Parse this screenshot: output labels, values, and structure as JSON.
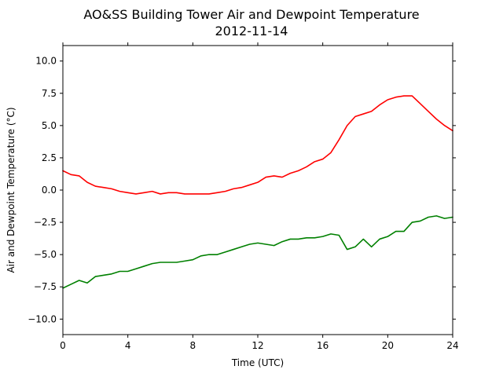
{
  "chart_data": {
    "type": "line",
    "title_line1": "AO&SS Building Tower Air and Dewpoint Temperature",
    "title_line2": "2012-11-14",
    "xlabel": "Time (UTC)",
    "ylabel": "Air and Dewpoint Temperature (°C)",
    "xlim": [
      0,
      24
    ],
    "ylim": [
      -11.2,
      11.2
    ],
    "xticks": [
      0,
      4,
      8,
      12,
      16,
      20,
      24
    ],
    "yticks": [
      -10.0,
      -7.5,
      -5.0,
      -2.5,
      0.0,
      2.5,
      5.0,
      7.5,
      10.0
    ],
    "ytick_labels": [
      "−10.0",
      "−7.5",
      "−5.0",
      "−2.5",
      "0.0",
      "2.5",
      "5.0",
      "7.5",
      "10.0"
    ],
    "grid": false,
    "series": [
      {
        "color": "#ff0000",
        "x": [
          0,
          0.5,
          1,
          1.5,
          2,
          2.5,
          3,
          3.5,
          4,
          4.5,
          5,
          5.5,
          6,
          6.5,
          7,
          7.5,
          8,
          8.5,
          9,
          9.5,
          10,
          10.5,
          11,
          11.5,
          12,
          12.5,
          13,
          13.5,
          14,
          14.5,
          15,
          15.5,
          16,
          16.5,
          17,
          17.5,
          18,
          18.5,
          19,
          19.5,
          20,
          20.5,
          21,
          21.5,
          22,
          22.5,
          23,
          23.5,
          24
        ],
        "values": [
          1.5,
          1.2,
          1.1,
          0.6,
          0.3,
          0.2,
          0.1,
          -0.1,
          -0.2,
          -0.3,
          -0.2,
          -0.1,
          -0.3,
          -0.2,
          -0.2,
          -0.3,
          -0.3,
          -0.3,
          -0.3,
          -0.2,
          -0.1,
          0.1,
          0.2,
          0.4,
          0.6,
          1.0,
          1.1,
          1.0,
          1.3,
          1.5,
          1.8,
          2.2,
          2.4,
          2.9,
          3.9,
          5.0,
          5.7,
          5.9,
          6.1,
          6.6,
          7.0,
          7.2,
          7.3,
          7.3,
          6.7,
          6.1,
          5.5,
          5.0,
          4.6
        ]
      },
      {
        "color": "#008000",
        "x": [
          0,
          0.5,
          1,
          1.5,
          2,
          2.5,
          3,
          3.5,
          4,
          4.5,
          5,
          5.5,
          6,
          6.5,
          7,
          7.5,
          8,
          8.5,
          9,
          9.5,
          10,
          10.5,
          11,
          11.5,
          12,
          12.5,
          13,
          13.5,
          14,
          14.5,
          15,
          15.5,
          16,
          16.5,
          17,
          17.5,
          18,
          18.5,
          19,
          19.5,
          20,
          20.5,
          21,
          21.5,
          22,
          22.5,
          23,
          23.5,
          24
        ],
        "values": [
          -7.6,
          -7.3,
          -7.0,
          -7.2,
          -6.7,
          -6.6,
          -6.5,
          -6.3,
          -6.3,
          -6.1,
          -5.9,
          -5.7,
          -5.6,
          -5.6,
          -5.6,
          -5.5,
          -5.4,
          -5.1,
          -5.0,
          -5.0,
          -4.8,
          -4.6,
          -4.4,
          -4.2,
          -4.1,
          -4.2,
          -4.3,
          -4.0,
          -3.8,
          -3.8,
          -3.7,
          -3.7,
          -3.6,
          -3.4,
          -3.5,
          -4.6,
          -4.4,
          -3.8,
          -4.4,
          -3.8,
          -3.6,
          -3.2,
          -3.2,
          -2.5,
          -2.4,
          -2.1,
          -2.0,
          -2.2,
          -2.1
        ]
      }
    ]
  }
}
